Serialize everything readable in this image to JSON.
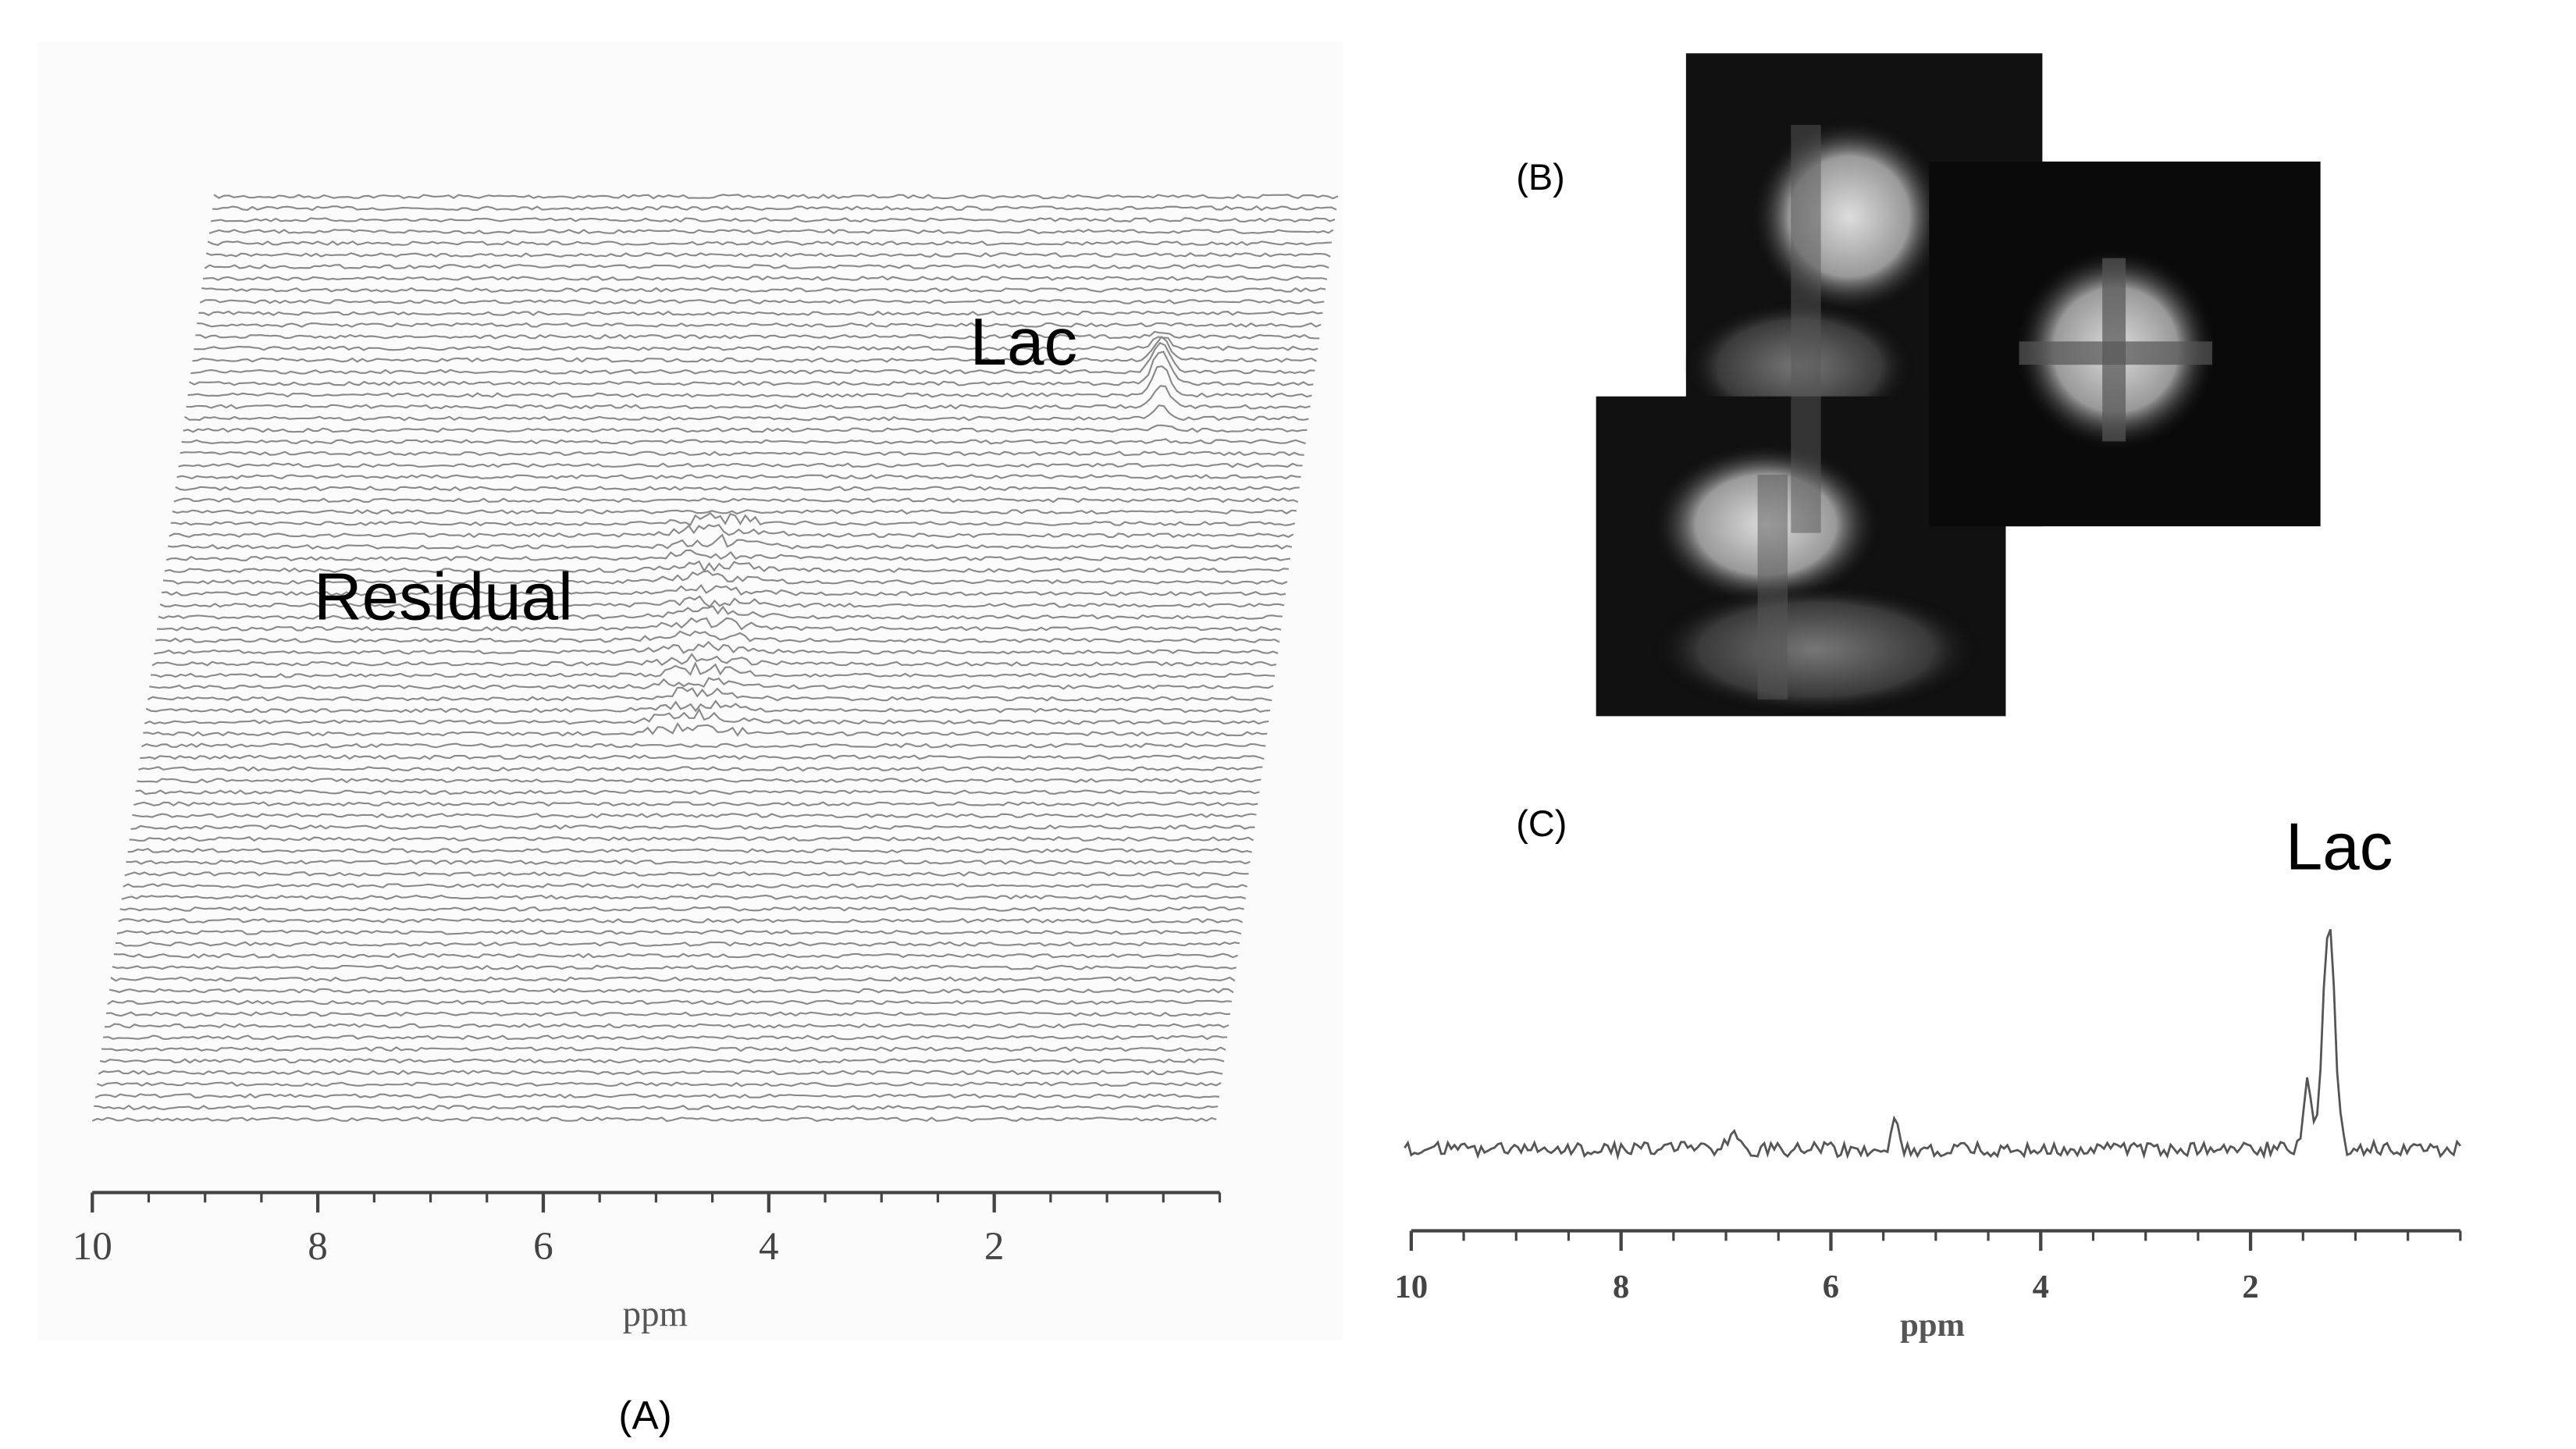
{
  "panel_a": {
    "label": "(A)",
    "annotations": [
      "Lac",
      "Residual"
    ],
    "x_axis": {
      "label": "ppm",
      "xlim": [
        10,
        0
      ],
      "xticks": [
        10,
        8,
        6,
        4,
        2
      ]
    }
  },
  "panel_b": {
    "label": "(B)"
  },
  "panel_c": {
    "label": "(C)",
    "annotation": "Lac",
    "x_axis": {
      "label": "ppm",
      "xlim": [
        10,
        0
      ],
      "xticks": [
        10,
        8,
        6,
        4,
        2
      ]
    }
  }
}
